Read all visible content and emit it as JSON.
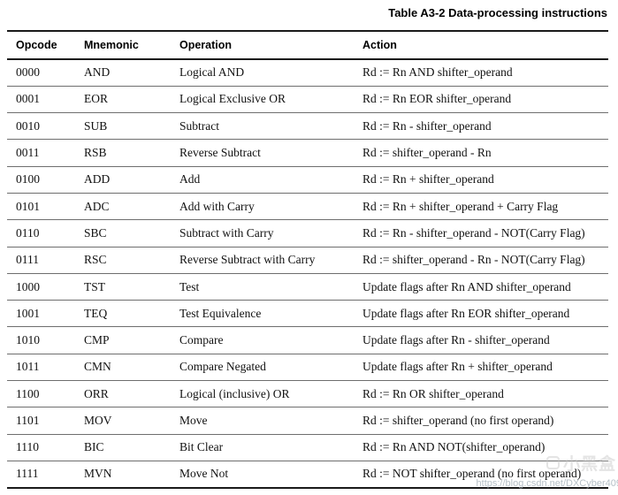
{
  "title": "Table A3-2 Data-processing instructions",
  "table": {
    "columns": [
      "Opcode",
      "Mnemonic",
      "Operation",
      "Action"
    ],
    "rows": [
      {
        "opcode": "0000",
        "mnemonic": "AND",
        "operation": "Logical AND",
        "action": "Rd := Rn AND shifter_operand"
      },
      {
        "opcode": "0001",
        "mnemonic": "EOR",
        "operation": "Logical Exclusive OR",
        "action": "Rd := Rn EOR shifter_operand"
      },
      {
        "opcode": "0010",
        "mnemonic": "SUB",
        "operation": "Subtract",
        "action": "Rd := Rn - shifter_operand"
      },
      {
        "opcode": "0011",
        "mnemonic": "RSB",
        "operation": "Reverse Subtract",
        "action": "Rd := shifter_operand - Rn"
      },
      {
        "opcode": "0100",
        "mnemonic": "ADD",
        "operation": "Add",
        "action": "Rd := Rn + shifter_operand"
      },
      {
        "opcode": "0101",
        "mnemonic": "ADC",
        "operation": "Add with Carry",
        "action": "Rd := Rn + shifter_operand + Carry Flag"
      },
      {
        "opcode": "0110",
        "mnemonic": "SBC",
        "operation": "Subtract with Carry",
        "action": "Rd := Rn - shifter_operand - NOT(Carry Flag)"
      },
      {
        "opcode": "0111",
        "mnemonic": "RSC",
        "operation": "Reverse Subtract with Carry",
        "action": "Rd := shifter_operand - Rn - NOT(Carry Flag)"
      },
      {
        "opcode": "1000",
        "mnemonic": "TST",
        "operation": "Test",
        "action": "Update flags after Rn AND shifter_operand"
      },
      {
        "opcode": "1001",
        "mnemonic": "TEQ",
        "operation": "Test Equivalence",
        "action": "Update flags after Rn EOR shifter_operand"
      },
      {
        "opcode": "1010",
        "mnemonic": "CMP",
        "operation": "Compare",
        "action": "Update flags after Rn - shifter_operand"
      },
      {
        "opcode": "1011",
        "mnemonic": "CMN",
        "operation": "Compare Negated",
        "action": "Update flags after Rn + shifter_operand"
      },
      {
        "opcode": "1100",
        "mnemonic": "ORR",
        "operation": "Logical (inclusive) OR",
        "action": "Rd := Rn OR shifter_operand"
      },
      {
        "opcode": "1101",
        "mnemonic": "MOV",
        "operation": "Move",
        "action": "Rd := shifter_operand (no first operand)"
      },
      {
        "opcode": "1110",
        "mnemonic": "BIC",
        "operation": "Bit Clear",
        "action": "Rd := Rn AND NOT(shifter_operand)"
      },
      {
        "opcode": "1111",
        "mnemonic": "MVN",
        "operation": "Move Not",
        "action": "Rd := NOT shifter_operand (no first operand)"
      }
    ]
  },
  "watermark": {
    "logo_text": "小黑盒",
    "url": "https://blog.csdn.net/DXCyber409"
  },
  "colors": {
    "background": "#ffffff",
    "text": "#111111",
    "rule_heavy": "#1a1a1a",
    "rule_light": "#6e6e6e",
    "watermark_logo": "#c4c4c4",
    "watermark_url": "#a9b4bd"
  }
}
